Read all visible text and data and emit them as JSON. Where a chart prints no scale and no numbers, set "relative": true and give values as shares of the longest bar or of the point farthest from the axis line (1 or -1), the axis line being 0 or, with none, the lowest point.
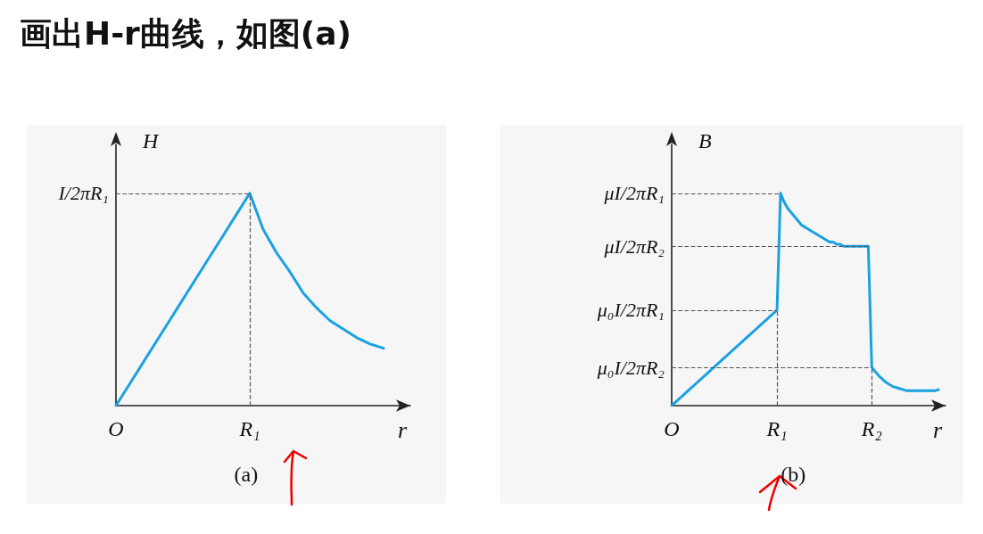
{
  "chart_data": [
    {
      "type": "line",
      "title": "画出H-r曲线，如图(a)",
      "xlabel": "r",
      "ylabel": "H",
      "annotations": [
        "(a)"
      ],
      "relative": true,
      "categories": [
        "O",
        null,
        null,
        null,
        null,
        null,
        null,
        null,
        null,
        null,
        "R₁",
        null,
        null,
        null,
        null,
        null,
        null,
        null,
        null,
        null,
        null,
        null,
        null
      ],
      "series": [
        {
          "color": "#1ba1e2",
          "values": [
            0,
            0.1,
            0.2,
            0.3,
            0.4,
            0.5,
            0.6,
            0.7,
            0.8,
            0.9,
            1,
            0.83,
            0.72,
            0.63,
            0.53,
            0.46,
            0.4,
            0.36,
            0.32,
            0.29,
            0.27,
            null,
            null
          ]
        }
      ],
      "ref_lines": [
        {
          "axis": "y",
          "value": 1,
          "label": "I/2πR₁",
          "line_style": "dashed",
          "color": "#555555"
        },
        {
          "axis": "x",
          "value": "R₁",
          "line_style": "dashed",
          "color": "#555555"
        }
      ],
      "marker": "none",
      "line_style": "solid"
    },
    {
      "type": "line",
      "xlabel": "r",
      "ylabel": "B",
      "annotations": [
        "(b)"
      ],
      "relative": true,
      "categories": [
        "O",
        null,
        null,
        null,
        null,
        null,
        null,
        null,
        null,
        null,
        null,
        null,
        null,
        null,
        null,
        null,
        null,
        null,
        null,
        null,
        null,
        null,
        null,
        null,
        null,
        null,
        null,
        null,
        null,
        null,
        "R₁",
        null,
        null,
        null,
        null,
        null,
        null,
        null,
        null,
        null,
        null,
        null,
        null,
        null,
        null,
        null,
        null,
        null,
        null,
        null,
        null,
        null,
        null,
        null,
        null,
        null,
        null,
        "R₂",
        null,
        null,
        null,
        null,
        null,
        null,
        null,
        null,
        null,
        null,
        null,
        null,
        null,
        null,
        null,
        null,
        null,
        null,
        null,
        null,
        null
      ],
      "series": [
        {
          "color": "#1ba1e2",
          "values": [
            0,
            0.015,
            0.03,
            0.045,
            0.06,
            0.075,
            0.09,
            0.105,
            0.12,
            0.135,
            0.15,
            0.165,
            0.18,
            0.195,
            0.21,
            0.225,
            0.24,
            0.255,
            0.27,
            0.285,
            0.3,
            0.315,
            0.33,
            0.345,
            0.36,
            0.375,
            0.39,
            0.405,
            0.42,
            0.435,
            0.45,
            1,
            0.96,
            0.93,
            0.91,
            0.89,
            0.87,
            0.85,
            0.84,
            0.83,
            0.82,
            0.81,
            0.8,
            0.79,
            0.78,
            0.77,
            0.77,
            0.76,
            0.76,
            0.75,
            0.75,
            0.75,
            0.75,
            0.75,
            0.75,
            0.75,
            0.75,
            0.18,
            0.16,
            0.14,
            0.125,
            0.11,
            0.1,
            0.09,
            0.085,
            0.08,
            0.075,
            0.07,
            0.07,
            0.07,
            0.07,
            0.07,
            0.07,
            0.07,
            0.07,
            0.07,
            0.075,
            null,
            null
          ]
        }
      ],
      "ref_lines": [
        {
          "axis": "y",
          "value": 1,
          "label": "μI/2πR₁",
          "line_style": "dashed",
          "color": "#555555"
        },
        {
          "axis": "y",
          "value": 0.75,
          "label": "μI/2πR₂",
          "line_style": "dashed",
          "color": "#555555"
        },
        {
          "axis": "y",
          "value": 0.45,
          "label": "μ₀I/2πR₁",
          "line_style": "dashed",
          "color": "#555555"
        },
        {
          "axis": "y",
          "value": 0.18,
          "label": "μ₀I/2πR₂",
          "line_style": "dashed",
          "color": "#555555"
        },
        {
          "axis": "x",
          "value": "R₁",
          "line_style": "dashed",
          "color": "#555555"
        },
        {
          "axis": "x",
          "value": "R₂",
          "line_style": "dashed",
          "color": "#555555"
        }
      ],
      "marker": "none",
      "line_style": "solid"
    }
  ]
}
